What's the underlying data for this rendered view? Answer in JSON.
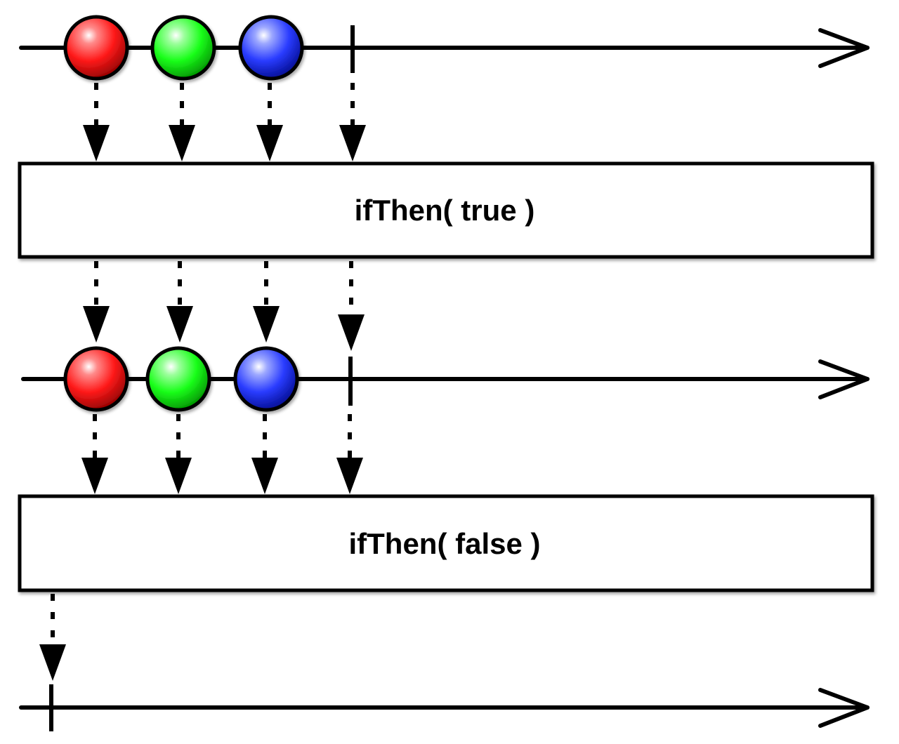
{
  "diagram": {
    "operators": [
      {
        "label": "ifThen( true )"
      },
      {
        "label": "ifThen( false )"
      }
    ],
    "timelines": [
      {
        "role": "source",
        "items": [
          {
            "kind": "marble",
            "color": "red"
          },
          {
            "kind": "marble",
            "color": "green"
          },
          {
            "kind": "marble",
            "color": "blue"
          },
          {
            "kind": "completion"
          }
        ]
      },
      {
        "role": "output-true",
        "items": [
          {
            "kind": "marble",
            "color": "red"
          },
          {
            "kind": "marble",
            "color": "green"
          },
          {
            "kind": "marble",
            "color": "blue"
          },
          {
            "kind": "completion"
          }
        ]
      },
      {
        "role": "output-false",
        "items": [
          {
            "kind": "completion"
          }
        ]
      }
    ],
    "colors": {
      "red": "#ff1a1a",
      "green": "#1aff1a",
      "blue": "#2a3cff",
      "line": "#000000",
      "background": "#ffffff"
    }
  }
}
